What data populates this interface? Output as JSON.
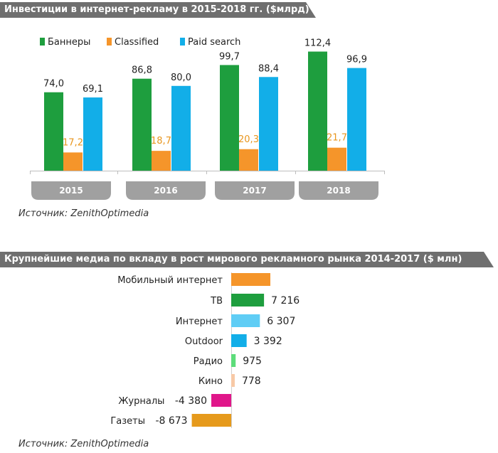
{
  "chart_top": {
    "title": "Инвестиции в интернет-рекламу в 2015-2018 гг. ($млрд)",
    "source": "Источник: ZenithOptimedia"
  },
  "chart_bottom": {
    "title": "Крупнейшие медиа по вкладу в рост мирового рекламного рынка 2014-2017 ($ млн)",
    "source": "Источник: ZenithOptimedia"
  },
  "chart_data": [
    {
      "type": "bar",
      "title": "Инвестиции в интернет-рекламу в 2015-2018 гг. ($млрд)",
      "categories": [
        "2015",
        "2016",
        "2017",
        "2018"
      ],
      "series": [
        {
          "name": "Баннеры",
          "values": [
            74.0,
            86.8,
            99.7,
            112.4
          ],
          "labels": [
            "74,0",
            "86,8",
            "99,7",
            "112,4"
          ],
          "color": "#1e9e3e"
        },
        {
          "name": "Classified",
          "values": [
            17.2,
            18.7,
            20.3,
            21.7
          ],
          "labels": [
            "17,2",
            "18,7",
            "20,3",
            "21,7"
          ],
          "color": "#f5952a"
        },
        {
          "name": "Paid search",
          "values": [
            69.1,
            80.0,
            88.4,
            96.9
          ],
          "labels": [
            "69,1",
            "80,0",
            "88,4",
            "96,9"
          ],
          "color": "#12aee8"
        }
      ],
      "ylim": [
        0,
        120
      ],
      "legend": "top",
      "grid": false
    },
    {
      "type": "bar",
      "orientation": "horizontal",
      "title": "Крупнейшие медиа по вкладу в рост мирового рекламного рынка 2014-2017 ($ млн)",
      "categories": [
        "Мобильный интернет",
        "ТВ",
        "Интернет",
        "Outdoor",
        "Радио",
        "Кино",
        "Журналы",
        "Газеты"
      ],
      "values": [
        null,
        7216,
        6307,
        3392,
        975,
        778,
        -4380,
        -8673
      ],
      "labels": [
        "",
        "7 216",
        "6 307",
        "3 392",
        "975",
        "778",
        "-4 380",
        "-8 673"
      ],
      "colors": [
        "#f5952a",
        "#1e9e3e",
        "#5fcdf5",
        "#12aee8",
        "#5ddc7a",
        "#f7c9a6",
        "#e0168a",
        "#e69a1c"
      ],
      "grid": false
    }
  ]
}
